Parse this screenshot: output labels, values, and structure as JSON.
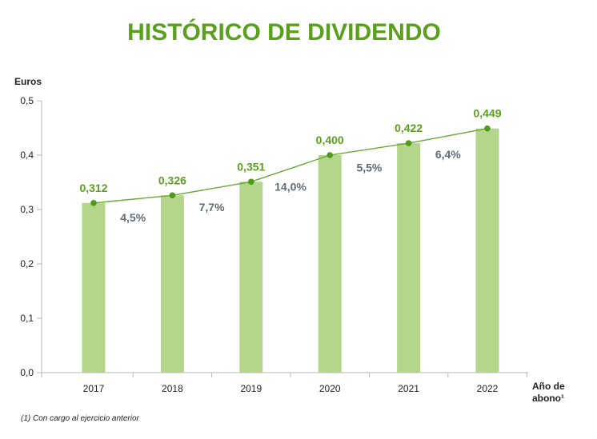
{
  "chart_data": {
    "type": "bar",
    "title": "HISTÓRICO DE DIVIDENDO",
    "ylabel": "Euros",
    "xlabel_line1": "Año de",
    "xlabel_line2": "abono¹",
    "footnote": "(1) Con cargo al ejercicio anterior",
    "categories": [
      "2017",
      "2018",
      "2019",
      "2020",
      "2021",
      "2022"
    ],
    "values": [
      0.312,
      0.326,
      0.351,
      0.4,
      0.422,
      0.449
    ],
    "value_labels": [
      "0,312",
      "0,326",
      "0,351",
      "0,400",
      "0,422",
      "0,449"
    ],
    "growth_labels": [
      "4,5%",
      "7,7%",
      "14,0%",
      "5,5%",
      "6,4%"
    ],
    "ylim": [
      0,
      0.5
    ],
    "yticks": [
      0,
      0.1,
      0.2,
      0.3,
      0.4,
      0.5
    ],
    "ytick_labels": [
      "0,0",
      "0,1",
      "0,2",
      "0,3",
      "0,4",
      "0,5"
    ],
    "grid": false,
    "overlay": "line-with-markers",
    "colors": {
      "title": "#5aa01e",
      "bar": "#b3d68a",
      "line": "#69a834",
      "marker": "#4f9a16",
      "value_label": "#5aa01e",
      "growth_label": "#636b74",
      "axis": "#b8b8b8"
    }
  }
}
